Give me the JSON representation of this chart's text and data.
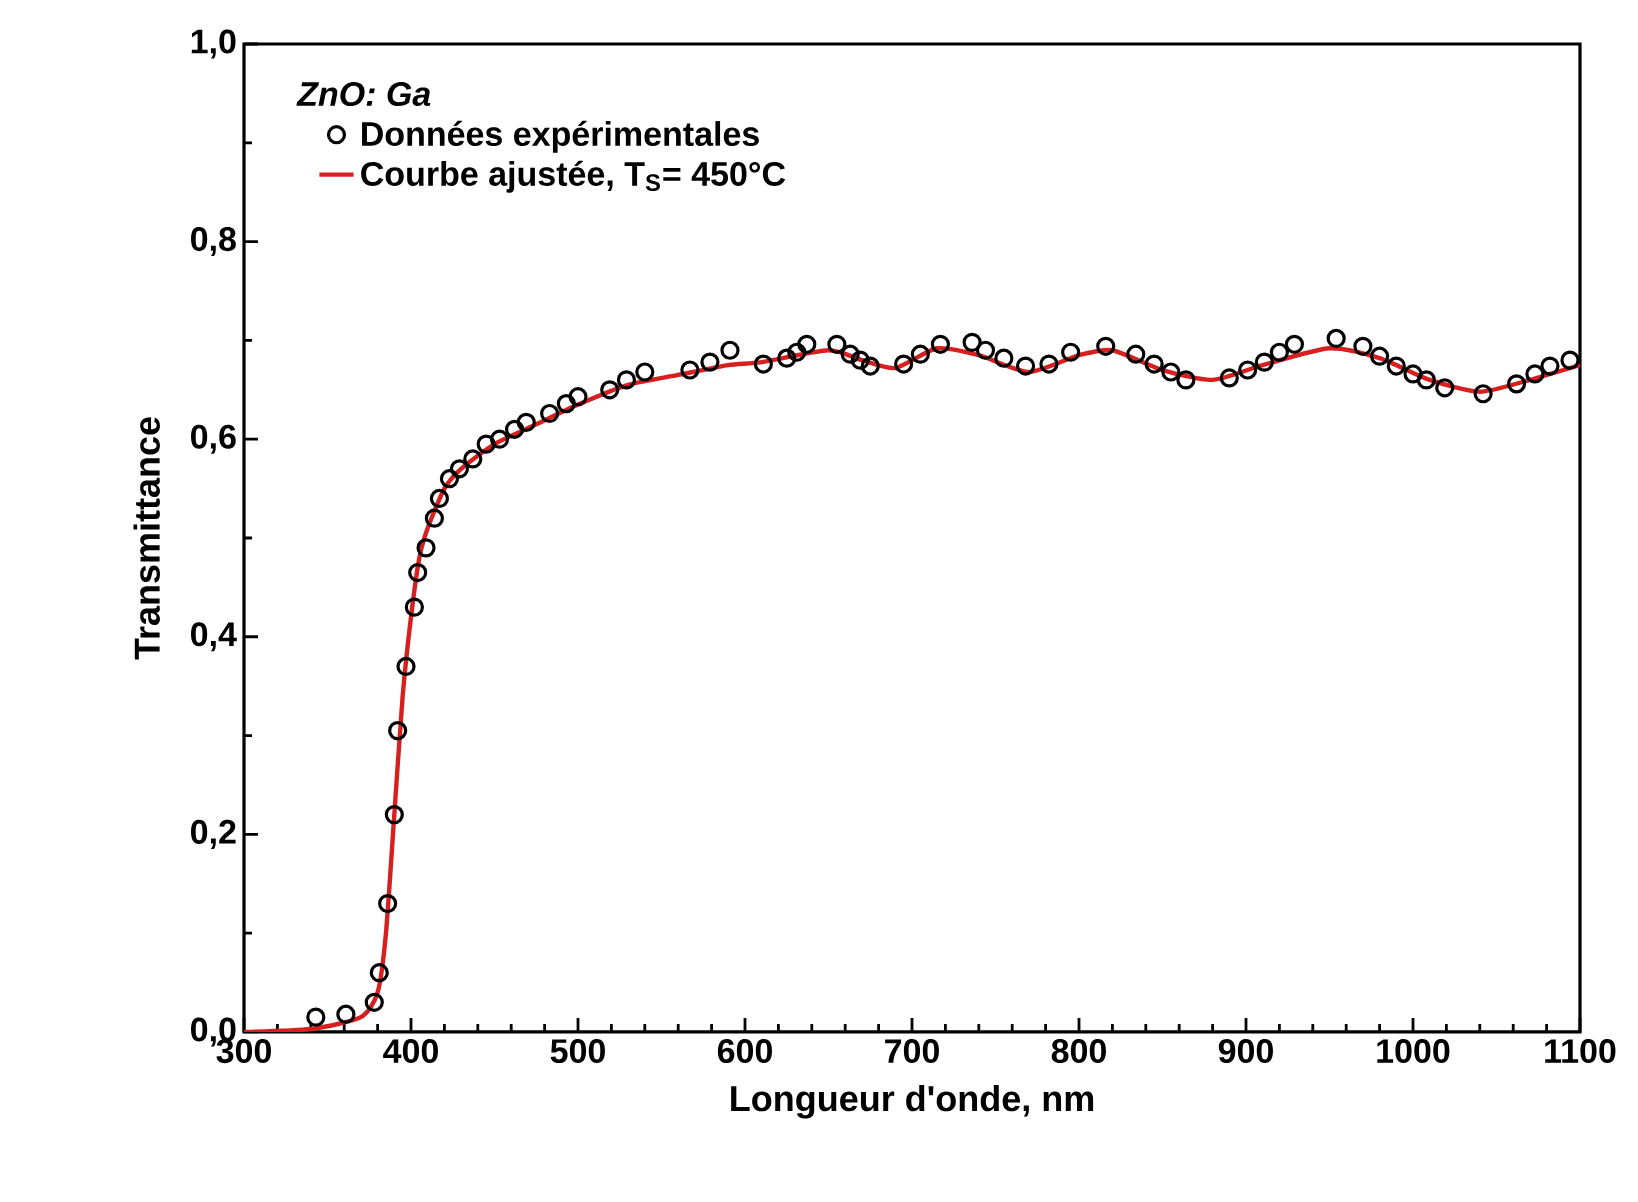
{
  "chart_data": {
    "type": "scatter",
    "xlabel": "Longueur d'onde, nm",
    "ylabel": "Transmittance",
    "legend_title": "ZnO: Ga",
    "legend": "top left",
    "grid": false,
    "xlim": [
      300,
      1100
    ],
    "xticks": [
      300,
      400,
      500,
      600,
      700,
      800,
      900,
      1000,
      1100
    ],
    "ylim": [
      0,
      1
    ],
    "yticks": [
      {
        "value": 0,
        "label": "0,0"
      },
      {
        "value": 0.2,
        "label": "0,2"
      },
      {
        "value": 0.4,
        "label": "0,4"
      },
      {
        "value": 0.6,
        "label": "0,6"
      },
      {
        "value": 0.8,
        "label": "0,8"
      },
      {
        "value": 1,
        "label": "1,0"
      }
    ],
    "series": [
      {
        "name": "Données expérimentales",
        "marker": "circle",
        "color": "#000000",
        "x": [
          343,
          361,
          378,
          381,
          386,
          390,
          392,
          397,
          402,
          404,
          409,
          414,
          417,
          423,
          429,
          437,
          445,
          453,
          462,
          469,
          483,
          493,
          500,
          519,
          529,
          540,
          567,
          579,
          591,
          611,
          625,
          631,
          637,
          655,
          663,
          669,
          675,
          695,
          705,
          717,
          736,
          744,
          755,
          768,
          782,
          795,
          816,
          834,
          845,
          855,
          864,
          890,
          901,
          911,
          920,
          929,
          954,
          970,
          980,
          990,
          1000,
          1008,
          1019,
          1042,
          1062,
          1073,
          1082,
          1094
        ],
        "values": [
          0.015,
          0.018,
          0.03,
          0.06,
          0.13,
          0.22,
          0.305,
          0.37,
          0.43,
          0.465,
          0.49,
          0.52,
          0.54,
          0.56,
          0.57,
          0.58,
          0.595,
          0.6,
          0.61,
          0.617,
          0.626,
          0.636,
          0.643,
          0.65,
          0.66,
          0.668,
          0.67,
          0.678,
          0.69,
          0.676,
          0.682,
          0.688,
          0.696,
          0.696,
          0.686,
          0.68,
          0.674,
          0.676,
          0.686,
          0.696,
          0.698,
          0.69,
          0.682,
          0.674,
          0.676,
          0.688,
          0.694,
          0.686,
          0.676,
          0.668,
          0.66,
          0.662,
          0.67,
          0.678,
          0.688,
          0.696,
          0.702,
          0.694,
          0.684,
          0.674,
          0.666,
          0.66,
          0.652,
          0.646,
          0.656,
          0.666,
          0.674,
          0.68
        ]
      },
      {
        "name": "Courbe ajustée, T$_{S}$= 450°C",
        "type": "line",
        "color": "#d62020",
        "line_style": "solid",
        "x": [
          300,
          340,
          370,
          380,
          385,
          390,
          395,
          400,
          405,
          410,
          420,
          430,
          450,
          475,
          500,
          530,
          560,
          590,
          610,
          650,
          670,
          690,
          715,
          740,
          770,
          800,
          820,
          850,
          880,
          910,
          950,
          980,
          1010,
          1040,
          1070,
          1100
        ],
        "values": [
          0,
          0.003,
          0.015,
          0.04,
          0.1,
          0.22,
          0.34,
          0.42,
          0.48,
          0.51,
          0.55,
          0.57,
          0.595,
          0.615,
          0.635,
          0.655,
          0.665,
          0.675,
          0.678,
          0.69,
          0.68,
          0.672,
          0.692,
          0.685,
          0.668,
          0.685,
          0.69,
          0.67,
          0.66,
          0.675,
          0.692,
          0.682,
          0.66,
          0.648,
          0.66,
          0.675
        ]
      }
    ]
  }
}
